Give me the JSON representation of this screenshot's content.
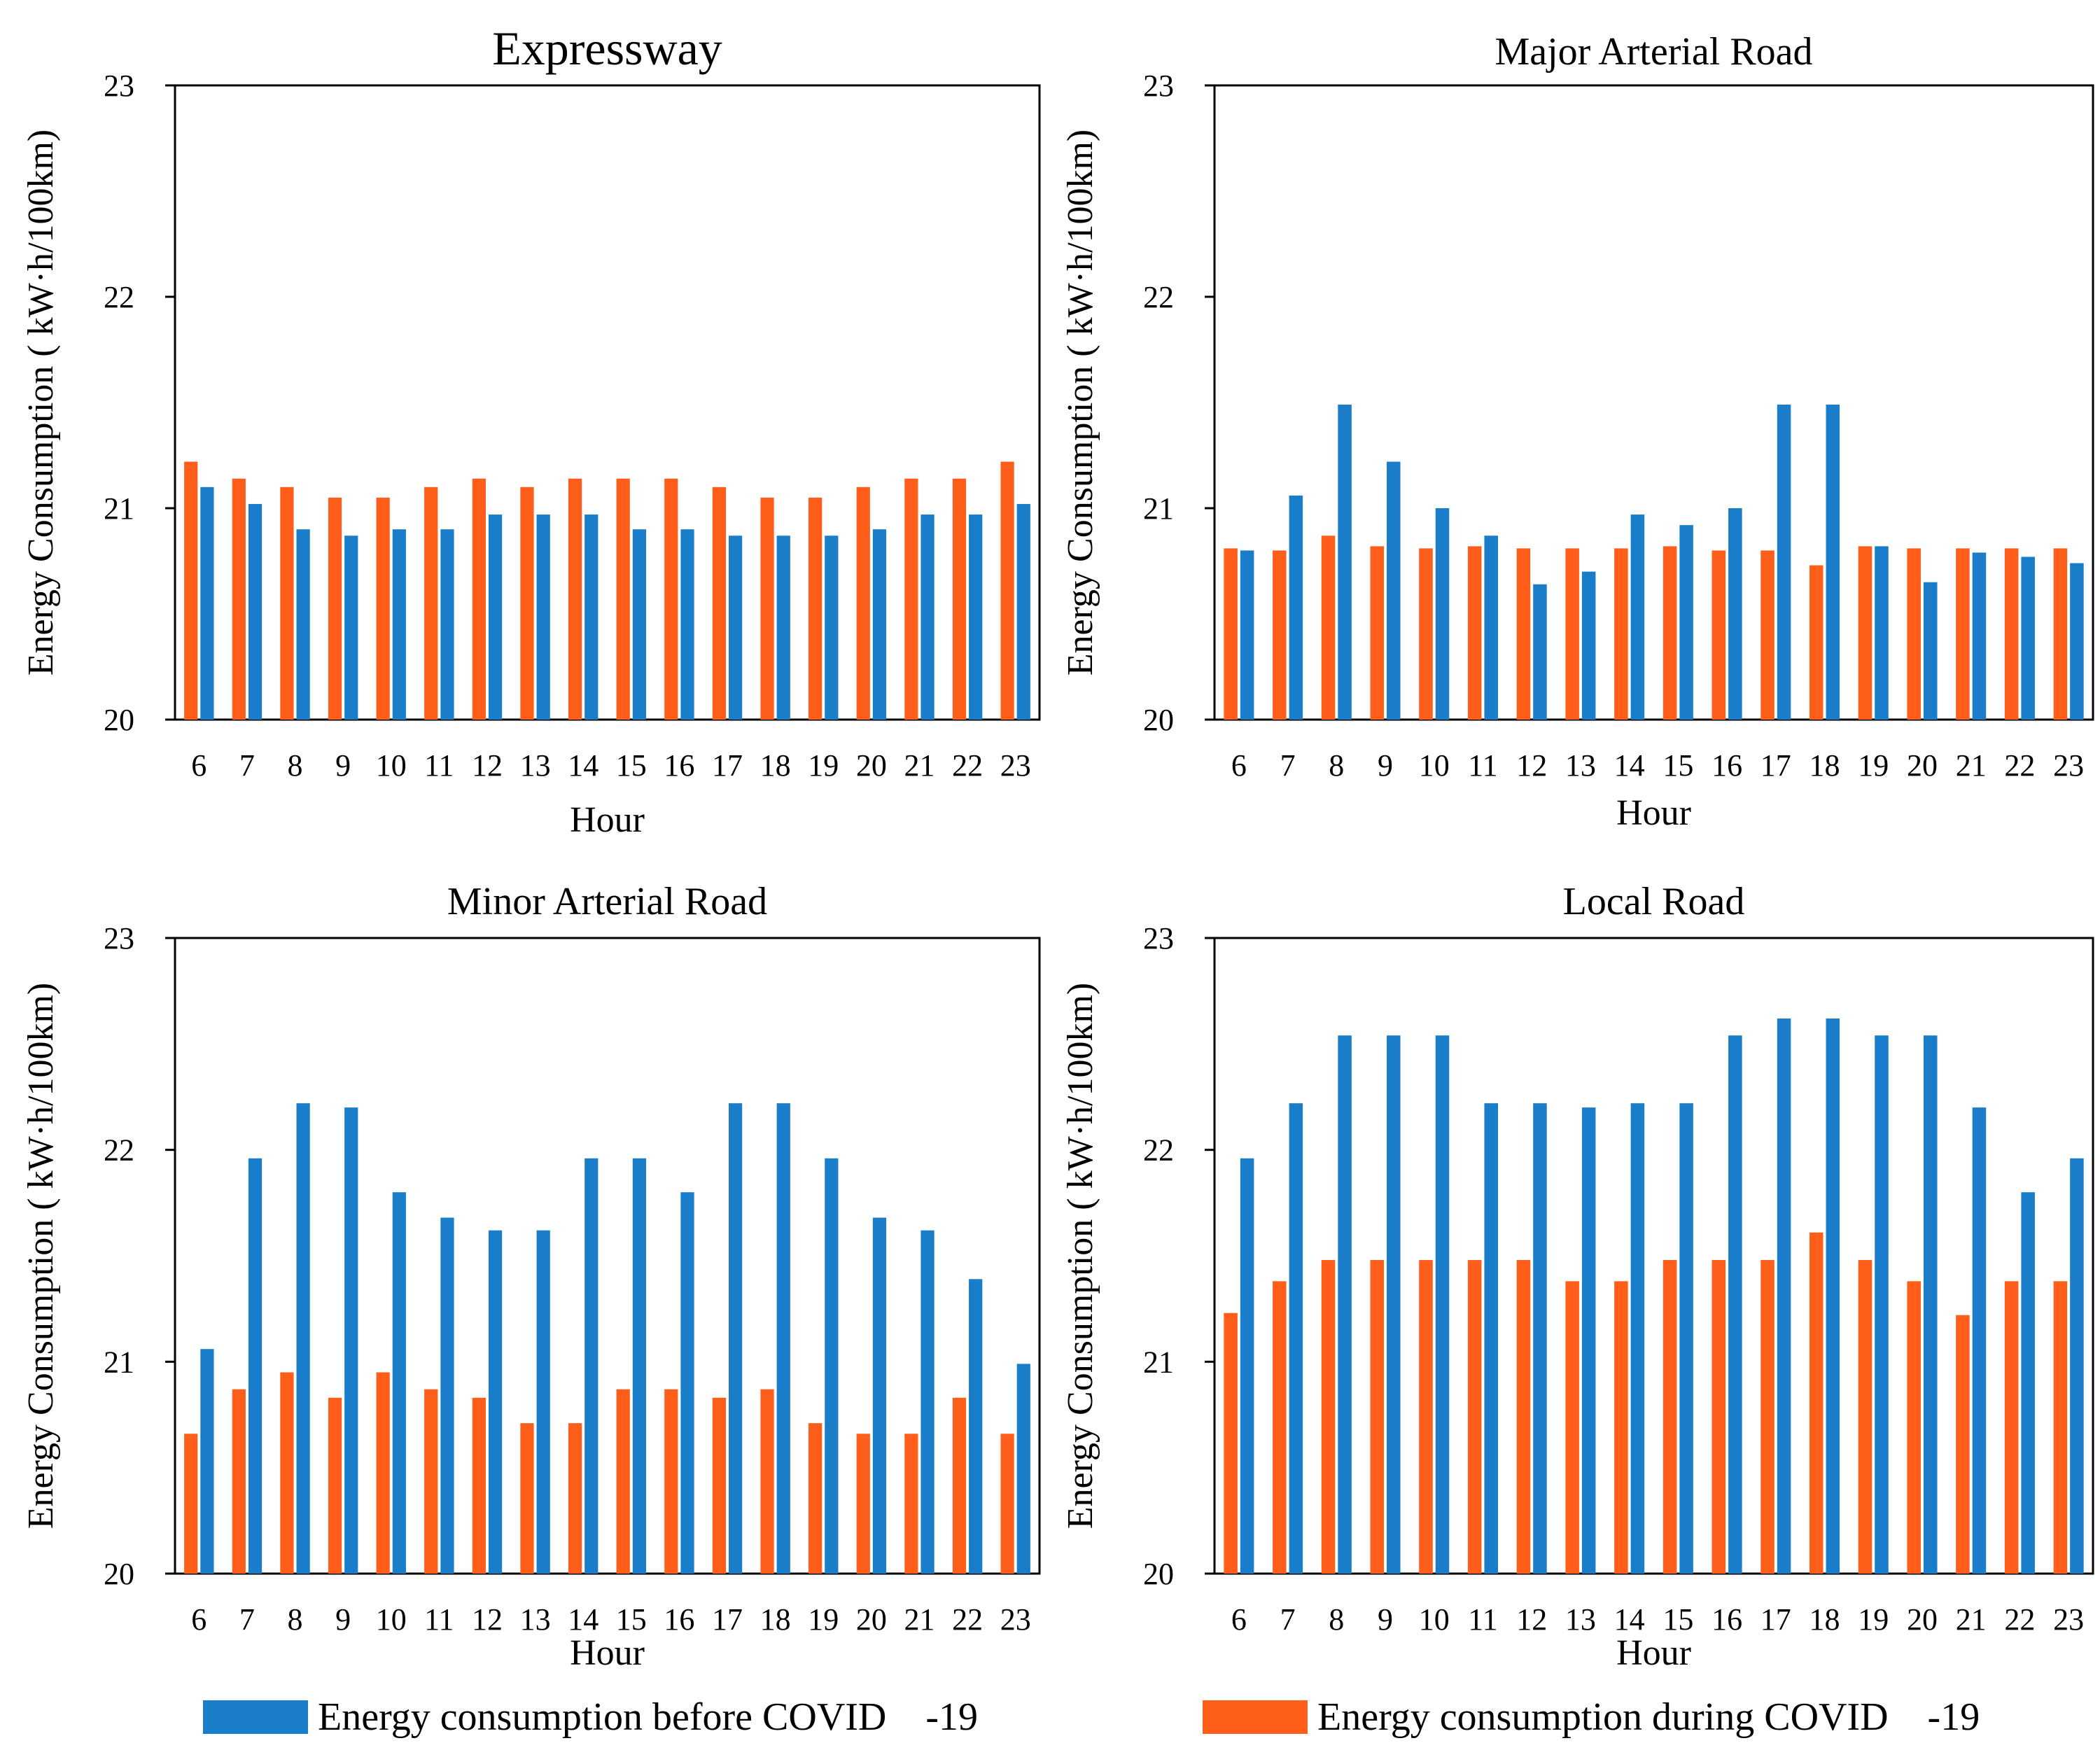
{
  "colors": {
    "before": "#1A7DC9",
    "during": "#FF5E1A",
    "axis": "#000000"
  },
  "legend": {
    "before_label": "Energy consumption before COVID    -19",
    "during_label": "Energy consumption during COVID    -19"
  },
  "chart_data": [
    {
      "type": "bar",
      "title": "Expressway",
      "xlabel": "Hour",
      "ylabel": "Energy Consumption ( kW·h/100km)",
      "ylim": [
        20,
        23
      ],
      "yticks": [
        20,
        21,
        22,
        23
      ],
      "categories": [
        "6",
        "7",
        "8",
        "9",
        "10",
        "11",
        "12",
        "13",
        "14",
        "15",
        "16",
        "17",
        "18",
        "19",
        "20",
        "21",
        "22",
        "23"
      ],
      "series": [
        {
          "name": "Energy consumption during COVID-19",
          "key": "during",
          "values": [
            21.22,
            21.14,
            21.1,
            21.05,
            21.05,
            21.1,
            21.14,
            21.1,
            21.14,
            21.14,
            21.14,
            21.1,
            21.05,
            21.05,
            21.1,
            21.14,
            21.14,
            21.22
          ]
        },
        {
          "name": "Energy consumption before COVID-19",
          "key": "before",
          "values": [
            21.1,
            21.02,
            20.9,
            20.87,
            20.9,
            20.9,
            20.97,
            20.97,
            20.97,
            20.9,
            20.9,
            20.87,
            20.87,
            20.87,
            20.9,
            20.97,
            20.97,
            21.02
          ]
        }
      ]
    },
    {
      "type": "bar",
      "title": "Major Arterial Road",
      "xlabel": "Hour",
      "ylabel": "Energy Consumption ( kW·h/100km)",
      "ylim": [
        20,
        23
      ],
      "yticks": [
        20,
        21,
        22,
        23
      ],
      "categories": [
        "6",
        "7",
        "8",
        "9",
        "10",
        "11",
        "12",
        "13",
        "14",
        "15",
        "16",
        "17",
        "18",
        "19",
        "20",
        "21",
        "22",
        "23"
      ],
      "series": [
        {
          "name": "Energy consumption during COVID-19",
          "key": "during",
          "values": [
            20.81,
            20.8,
            20.87,
            20.82,
            20.81,
            20.82,
            20.81,
            20.81,
            20.81,
            20.82,
            20.8,
            20.8,
            20.73,
            20.82,
            20.81,
            20.81,
            20.81,
            20.81
          ]
        },
        {
          "name": "Energy consumption before COVID-19",
          "key": "before",
          "values": [
            20.8,
            21.06,
            21.49,
            21.22,
            21.0,
            20.87,
            20.64,
            20.7,
            20.97,
            20.92,
            21.0,
            21.49,
            21.49,
            20.82,
            20.65,
            20.79,
            20.77,
            20.74
          ]
        }
      ]
    },
    {
      "type": "bar",
      "title": "Minor Arterial Road",
      "xlabel": "Hour",
      "ylabel": "Energy Consumption ( kW·h/100km)",
      "ylim": [
        20,
        23
      ],
      "yticks": [
        20,
        21,
        22,
        23
      ],
      "categories": [
        "6",
        "7",
        "8",
        "9",
        "10",
        "11",
        "12",
        "13",
        "14",
        "15",
        "16",
        "17",
        "18",
        "19",
        "20",
        "21",
        "22",
        "23"
      ],
      "series": [
        {
          "name": "Energy consumption during COVID-19",
          "key": "during",
          "values": [
            20.66,
            20.87,
            20.95,
            20.83,
            20.95,
            20.87,
            20.83,
            20.71,
            20.71,
            20.87,
            20.87,
            20.83,
            20.87,
            20.71,
            20.66,
            20.66,
            20.83,
            20.66
          ]
        },
        {
          "name": "Energy consumption before COVID-19",
          "key": "before",
          "values": [
            21.06,
            21.96,
            22.22,
            22.2,
            21.8,
            21.68,
            21.62,
            21.62,
            21.96,
            21.96,
            21.8,
            22.22,
            22.22,
            21.96,
            21.68,
            21.62,
            21.39,
            20.99
          ]
        }
      ]
    },
    {
      "type": "bar",
      "title": "Local Road",
      "xlabel": "Hour",
      "ylabel": "Energy Consumption ( kW·h/100km)",
      "ylim": [
        20,
        23
      ],
      "yticks": [
        20,
        21,
        22,
        23
      ],
      "categories": [
        "6",
        "7",
        "8",
        "9",
        "10",
        "11",
        "12",
        "13",
        "14",
        "15",
        "16",
        "17",
        "18",
        "19",
        "20",
        "21",
        "22",
        "23"
      ],
      "series": [
        {
          "name": "Energy consumption during COVID-19",
          "key": "during",
          "values": [
            21.23,
            21.38,
            21.48,
            21.48,
            21.48,
            21.48,
            21.48,
            21.38,
            21.38,
            21.48,
            21.48,
            21.48,
            21.61,
            21.48,
            21.38,
            21.22,
            21.38,
            21.38
          ]
        },
        {
          "name": "Energy consumption before COVID-19",
          "key": "before",
          "values": [
            21.96,
            22.22,
            22.54,
            22.54,
            22.54,
            22.22,
            22.22,
            22.2,
            22.22,
            22.22,
            22.54,
            22.62,
            22.62,
            22.54,
            22.54,
            22.2,
            21.8,
            21.96
          ]
        }
      ]
    }
  ]
}
